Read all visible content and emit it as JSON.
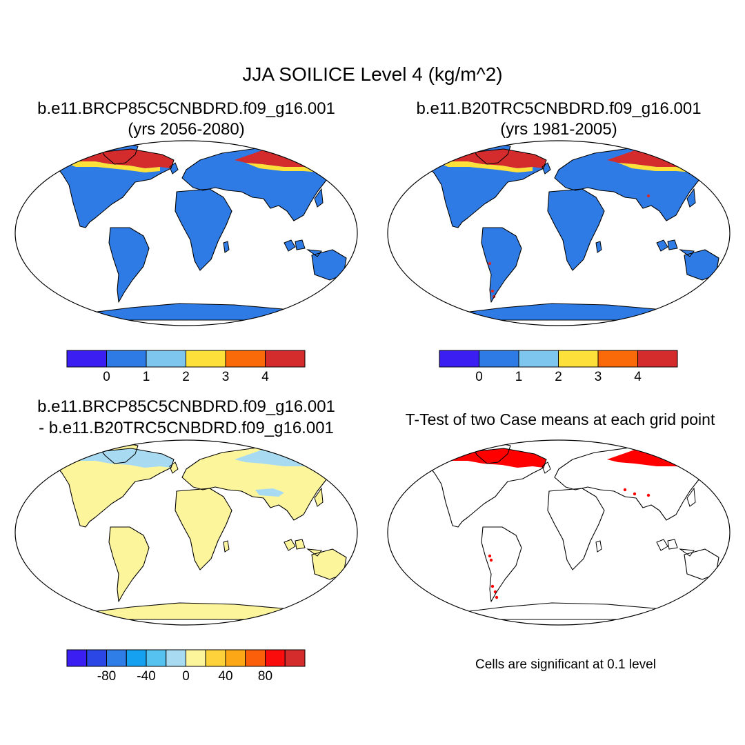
{
  "figure": {
    "title": "JJA SOILICE Level 4 (kg/m^2)"
  },
  "panels": [
    {
      "title_line1": "b.e11.BRCP85C5CNBDRD.f09_g16.001",
      "title_line2": "(yrs 2056-2080)",
      "land_fill": "#2e7be5",
      "high_lat_fill": "#d42c2c",
      "edge_fill": "#fde13a"
    },
    {
      "title_line1": "b.e11.B20TRC5CNBDRD.f09_g16.001",
      "title_line2": "(yrs 1981-2005)",
      "land_fill": "#2e7be5",
      "high_lat_fill": "#d42c2c",
      "edge_fill": "#fde13a"
    },
    {
      "title_line1": "b.e11.BRCP85C5CNBDRD.f09_g16.001",
      "title_line2": "- b.e11.B20TRC5CNBDRD.f09_g16.001",
      "land_fill": "#fdf59c",
      "high_lat_fill": "#a8dbf2"
    },
    {
      "title_line1": "T-Test of two Case means at each grid point",
      "significant_fill": "#ff0000",
      "note": "Cells are significant at 0.1 level"
    }
  ],
  "colorbars": [
    {
      "colors": [
        "#3b1ef2",
        "#2e7be5",
        "#7ec6ee",
        "#fde13a",
        "#fb6a08",
        "#d42c2c"
      ],
      "tick_labels": [
        "0",
        "1",
        "2",
        "3",
        "4"
      ]
    },
    {
      "colors": [
        "#3b1ef2",
        "#2e7be5",
        "#7ec6ee",
        "#fde13a",
        "#fb6a08",
        "#d42c2c"
      ],
      "tick_labels": [
        "0",
        "1",
        "2",
        "3",
        "4"
      ]
    },
    {
      "colors": [
        "#3b1ef2",
        "#2b48e6",
        "#2f7de6",
        "#16a0f0",
        "#55c2ef",
        "#a8dbf2",
        "#fdf59c",
        "#fdd23a",
        "#fba716",
        "#fc5f0a",
        "#fa0c0c",
        "#d42c2c"
      ],
      "tick_labels": [
        "-80",
        "-40",
        "0",
        "40",
        "80"
      ]
    }
  ]
}
